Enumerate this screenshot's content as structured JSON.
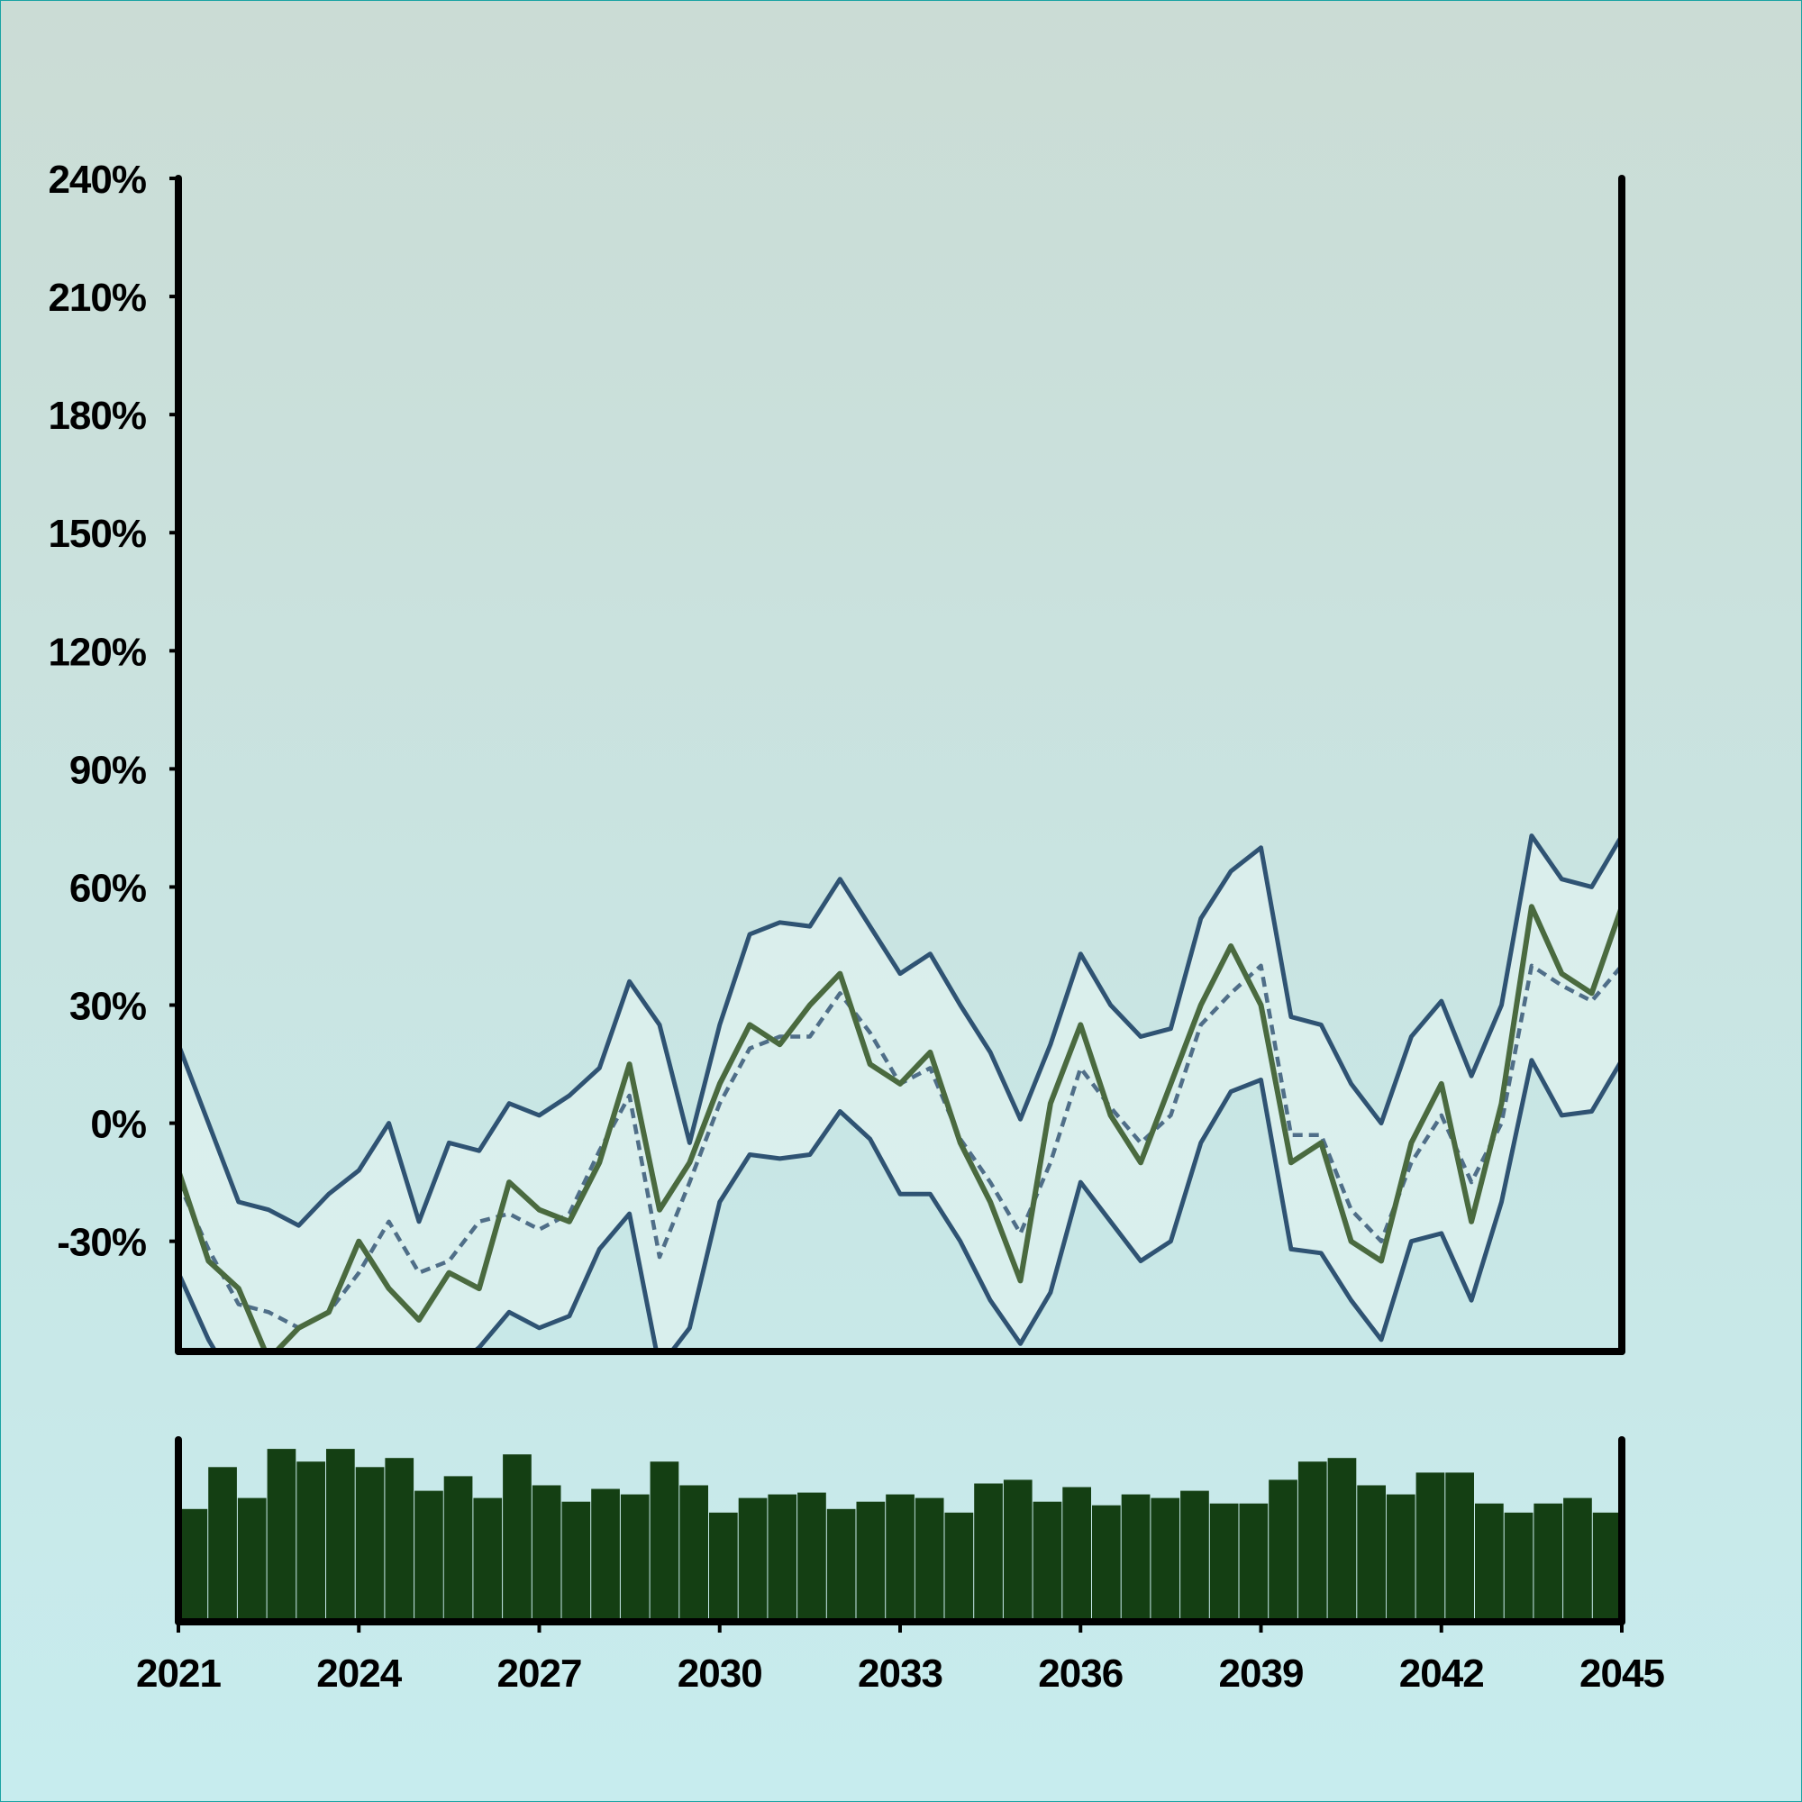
{
  "colors": {
    "background_top": "#cbdcd5",
    "background_bottom": "#c7ecee",
    "band_fill": "#dff2ef",
    "band_line": "#2f5373",
    "price_line": "#4a6a3f",
    "ma_line": "#4f6e88",
    "volume_bar": "#143f13",
    "axis": "#000000"
  },
  "chart_data": {
    "type": "line",
    "title": "",
    "xlabel": "",
    "ylabel": "",
    "x_range": [
      2021,
      2045
    ],
    "y_range": [
      -58,
      240
    ],
    "grid": false,
    "legend": "none",
    "x_tick_labels": [
      "2021",
      "2024",
      "2027",
      "2030",
      "2033",
      "2036",
      "2039",
      "2042",
      "2045"
    ],
    "y_tick_labels": [
      "240%",
      "210%",
      "180%",
      "150%",
      "120%",
      "90%",
      "60%",
      "30%",
      "0%",
      "-30%"
    ],
    "y_tick_values": [
      240,
      210,
      180,
      150,
      120,
      90,
      60,
      30,
      0,
      -30
    ],
    "x": [
      2021.0,
      2021.5,
      2022.0,
      2022.5,
      2023.0,
      2023.5,
      2024.0,
      2024.5,
      2025.0,
      2025.5,
      2026.0,
      2026.5,
      2027.0,
      2027.5,
      2028.0,
      2028.5,
      2029.0,
      2029.5,
      2030.0,
      2030.5,
      2031.0,
      2031.5,
      2032.0,
      2032.5,
      2033.0,
      2033.5,
      2034.0,
      2034.5,
      2035.0,
      2035.5,
      2036.0,
      2036.5,
      2037.0,
      2037.5,
      2038.0,
      2038.5,
      2039.0,
      2039.5,
      2040.0,
      2040.5,
      2041.0,
      2041.5,
      2042.0,
      2042.5,
      2043.0,
      2043.5,
      2044.0,
      2044.5,
      2045.0
    ],
    "series": [
      {
        "role": "upper band",
        "values": [
          20,
          0,
          -20,
          -22,
          -26,
          -18,
          -12,
          0,
          -25,
          -5,
          -7,
          5,
          2,
          7,
          14,
          36,
          25,
          -5,
          25,
          48,
          51,
          50,
          62,
          50,
          38,
          43,
          30,
          18,
          1,
          20,
          43,
          30,
          22,
          24,
          52,
          64,
          70,
          27,
          25,
          10,
          0,
          22,
          31,
          12,
          30,
          73,
          62,
          60,
          73
        ]
      },
      {
        "role": "moving average",
        "values": [
          -15,
          -32,
          -46,
          -48,
          -52,
          -48,
          -38,
          -25,
          -38,
          -35,
          -25,
          -23,
          -27,
          -23,
          -7,
          7,
          -34,
          -15,
          5,
          19,
          22,
          22,
          33,
          23,
          10,
          14,
          -4,
          -15,
          -28,
          -10,
          14,
          4,
          -5,
          2,
          25,
          33,
          40,
          -3,
          -3,
          -22,
          -30,
          -10,
          2,
          -15,
          0,
          40,
          35,
          31,
          40
        ]
      },
      {
        "role": "lower band",
        "values": [
          -38,
          -55,
          -68,
          -72,
          -74,
          -76,
          -70,
          -60,
          -68,
          -63,
          -57,
          -48,
          -52,
          -49,
          -32,
          -23,
          -62,
          -52,
          -20,
          -8,
          -9,
          -8,
          3,
          -4,
          -18,
          -18,
          -30,
          -45,
          -56,
          -43,
          -15,
          -25,
          -35,
          -30,
          -5,
          8,
          11,
          -32,
          -33,
          -45,
          -55,
          -30,
          -28,
          -45,
          -20,
          16,
          2,
          3,
          16
        ]
      },
      {
        "role": "price",
        "values": [
          -12,
          -35,
          -42,
          -60,
          -52,
          -48,
          -30,
          -42,
          -50,
          -38,
          -42,
          -15,
          -22,
          -25,
          -10,
          15,
          -22,
          -10,
          10,
          25,
          20,
          30,
          38,
          15,
          10,
          18,
          -5,
          -20,
          -40,
          5,
          25,
          2,
          -10,
          10,
          30,
          45,
          30,
          -10,
          -5,
          -30,
          -35,
          -5,
          10,
          -25,
          5,
          55,
          38,
          33,
          55
        ]
      },
      {
        "role": "volume",
        "values": [
          62,
          85,
          68,
          95,
          88,
          95,
          85,
          90,
          72,
          80,
          68,
          92,
          75,
          66,
          73,
          70,
          88,
          75,
          60,
          68,
          70,
          71,
          62,
          66,
          70,
          68,
          60,
          76,
          78,
          66,
          74,
          64,
          70,
          68,
          72,
          65,
          65,
          78,
          88,
          90,
          75,
          70,
          82,
          82,
          65,
          60,
          65,
          68,
          60
        ]
      }
    ]
  }
}
